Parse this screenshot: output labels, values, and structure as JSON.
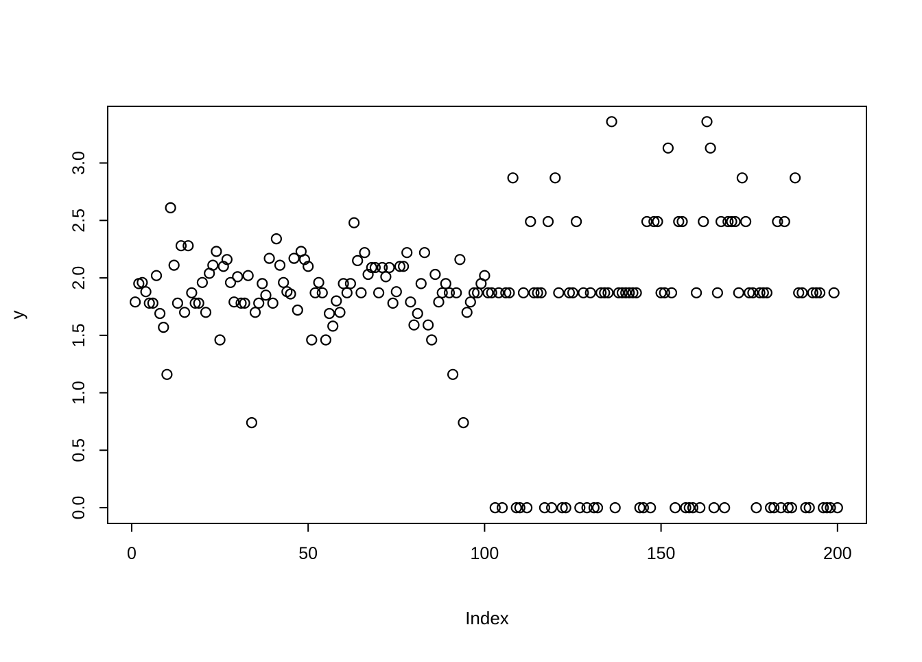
{
  "figure": {
    "background": "#ffffff",
    "frame_color": "#000000",
    "point_color": "#000000"
  },
  "chart_data": {
    "type": "scatter",
    "title": "",
    "xlabel": "Index",
    "ylabel": "y",
    "marker": "open-circle",
    "grid": false,
    "legend": null,
    "xlim": [
      -6.8,
      208.2
    ],
    "ylim": [
      -0.137,
      3.493
    ],
    "x_ticks": [
      0,
      50,
      100,
      150,
      200
    ],
    "x_tick_labels": [
      "0",
      "50",
      "100",
      "150",
      "200"
    ],
    "y_ticks": [
      0.0,
      0.5,
      1.0,
      1.5,
      2.0,
      2.5,
      3.0
    ],
    "y_tick_labels": [
      "0.0",
      "0.5",
      "1.0",
      "1.5",
      "2.0",
      "2.5",
      "3.0"
    ],
    "x_start": 1,
    "x_step": 1,
    "values": [
      1.79,
      1.95,
      1.96,
      1.88,
      1.78,
      1.78,
      2.02,
      1.69,
      1.57,
      1.16,
      2.61,
      2.11,
      1.78,
      2.28,
      1.7,
      2.28,
      1.87,
      1.78,
      1.78,
      1.96,
      1.7,
      2.04,
      2.11,
      2.23,
      1.46,
      2.1,
      2.16,
      1.96,
      1.79,
      2.01,
      1.78,
      1.78,
      2.02,
      0.74,
      1.7,
      1.78,
      1.95,
      1.85,
      2.17,
      1.78,
      2.34,
      2.11,
      1.96,
      1.88,
      1.86,
      2.17,
      1.72,
      2.23,
      2.16,
      2.1,
      1.46,
      1.87,
      1.96,
      1.87,
      1.46,
      1.69,
      1.58,
      1.8,
      1.7,
      1.95,
      1.87,
      1.95,
      2.48,
      2.15,
      1.87,
      2.22,
      2.03,
      2.09,
      2.09,
      1.87,
      2.09,
      2.01,
      2.09,
      1.78,
      1.88,
      2.1,
      2.1,
      2.22,
      1.79,
      1.59,
      1.69,
      1.95,
      2.22,
      1.59,
      1.46,
      2.03,
      1.79,
      1.87,
      1.95,
      1.87,
      1.16,
      1.87,
      2.16,
      0.74,
      1.7,
      1.79,
      1.87,
      1.87,
      1.95,
      2.02,
      1.87,
      1.87,
      0.0,
      1.87,
      0.0,
      1.87,
      1.87,
      2.87,
      0.0,
      0.0,
      1.87,
      0.0,
      2.49,
      1.87,
      1.87,
      1.87,
      0.0,
      2.49,
      0.0,
      2.87,
      1.87,
      0.0,
      0.0,
      1.87,
      1.87,
      2.49,
      0.0,
      1.87,
      0.0,
      1.87,
      0.0,
      0.0,
      1.87,
      1.87,
      1.87,
      3.36,
      0.0,
      1.87,
      1.87,
      1.87,
      1.87,
      1.87,
      1.87,
      0.0,
      0.0,
      2.49,
      0.0,
      2.49,
      2.49,
      1.87,
      1.87,
      3.13,
      1.87,
      0.0,
      2.49,
      2.49,
      0.0,
      0.0,
      0.0,
      1.87,
      0.0,
      2.49,
      3.36,
      3.13,
      0.0,
      1.87,
      2.49,
      0.0,
      2.49,
      2.49,
      2.49,
      1.87,
      2.87,
      2.49,
      1.87,
      1.87,
      0.0,
      1.87,
      1.87,
      1.87,
      0.0,
      0.0,
      2.49,
      0.0,
      2.49,
      0.0,
      0.0,
      2.87,
      1.87,
      1.87,
      0.0,
      0.0,
      1.87,
      1.87,
      1.87,
      0.0,
      0.0,
      0.0,
      1.87,
      0.0
    ]
  }
}
